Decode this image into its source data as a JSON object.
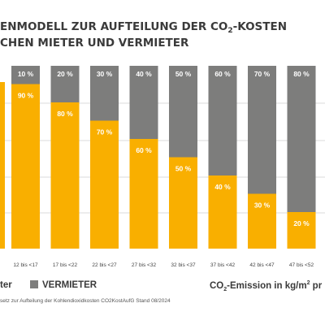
{
  "title": {
    "line1_pre": "ENMODELL ZUR AUFTEILUNG DER CO",
    "line1_sub": "2",
    "line1_post": "-KOSTEN",
    "line2": "CHEN MIETER UND VERMIETER"
  },
  "legend": {
    "mieter_tail": "ter",
    "vermieter": "VERMIETER"
  },
  "x_axis_label": {
    "pre": "CO",
    "sub": "2",
    "mid": "-Emission in kg/m",
    "sup": "2",
    "post": " pr"
  },
  "footnote": "setz zur Aufteilung der Kohlendioxidkosten CO2KostAufG  Stand 08/2024",
  "colors": {
    "mieter": "#f9af00",
    "vermieter": "#7d7d7c",
    "grid": "#cfcfcf"
  },
  "chart_data": {
    "type": "bar",
    "stacked": true,
    "categories": [
      "12 bis <17",
      "17 bis <22",
      "22 bis <27",
      "27 bis <32",
      "32 bis <37",
      "37 bis <42",
      "42 bis <47",
      "47 bis <52"
    ],
    "series": [
      {
        "name": "MIETER",
        "values": [
          90,
          80,
          70,
          60,
          50,
          40,
          30,
          20
        ],
        "labels": [
          "90 %",
          "80 %",
          "70 %",
          "60 %",
          "50 %",
          "40 %",
          "30 %",
          "20 %"
        ]
      },
      {
        "name": "VERMIETER",
        "values": [
          10,
          20,
          30,
          40,
          50,
          60,
          70,
          80
        ],
        "labels": [
          "10 %",
          "20 %",
          "30 %",
          "40 %",
          "50 %",
          "60 %",
          "70 %",
          "80 %"
        ]
      }
    ],
    "ylim": [
      0,
      100
    ],
    "grid": true
  }
}
